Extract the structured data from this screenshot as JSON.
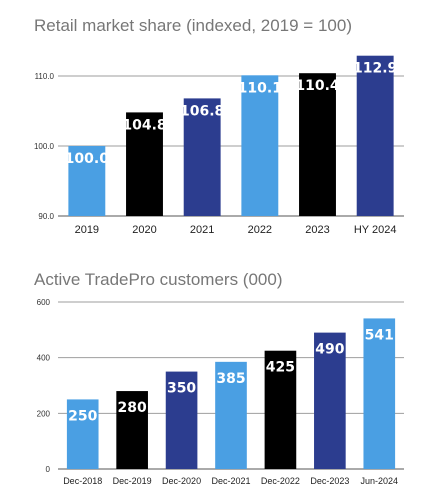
{
  "colors": {
    "light_blue": "#4a9fe3",
    "black": "#000000",
    "navy": "#2c3d8f"
  },
  "chart_data": [
    {
      "type": "bar",
      "title": "Retail market share (indexed, 2019 = 100)",
      "xlabel": "",
      "ylabel": "",
      "categories": [
        "2019",
        "2020",
        "2021",
        "2022",
        "2023",
        "HY 2024"
      ],
      "values": [
        100.0,
        104.8,
        106.8,
        110.1,
        110.4,
        112.9
      ],
      "value_labels": [
        "100.0",
        "104.8",
        "106.8",
        "110.1",
        "110.4",
        "112.9"
      ],
      "bar_colors": [
        "#4a9fe3",
        "#000000",
        "#2c3d8f",
        "#4a9fe3",
        "#000000",
        "#2c3d8f"
      ],
      "ylim": [
        90,
        113
      ],
      "yticks": [
        90,
        100,
        110
      ],
      "ytick_labels": [
        "90.0",
        "100.0",
        "110.0"
      ],
      "grid": true,
      "legend": "none"
    },
    {
      "type": "bar",
      "title": "Active TradePro customers (000)",
      "xlabel": "",
      "ylabel": "",
      "categories": [
        "Dec-2018",
        "Dec-2019",
        "Dec-2020",
        "Dec-2021",
        "Dec-2022",
        "Dec-2023",
        "Jun-2024"
      ],
      "values": [
        250,
        280,
        350,
        385,
        425,
        490,
        541
      ],
      "value_labels": [
        "250",
        "280",
        "350",
        "385",
        "425",
        "490",
        "541"
      ],
      "bar_colors": [
        "#4a9fe3",
        "#000000",
        "#2c3d8f",
        "#4a9fe3",
        "#000000",
        "#2c3d8f",
        "#4a9fe3"
      ],
      "ylim": [
        0,
        600
      ],
      "yticks": [
        0,
        200,
        400,
        600
      ],
      "ytick_labels": [
        "0",
        "200",
        "400",
        "600"
      ],
      "grid": true,
      "legend": "none"
    }
  ]
}
